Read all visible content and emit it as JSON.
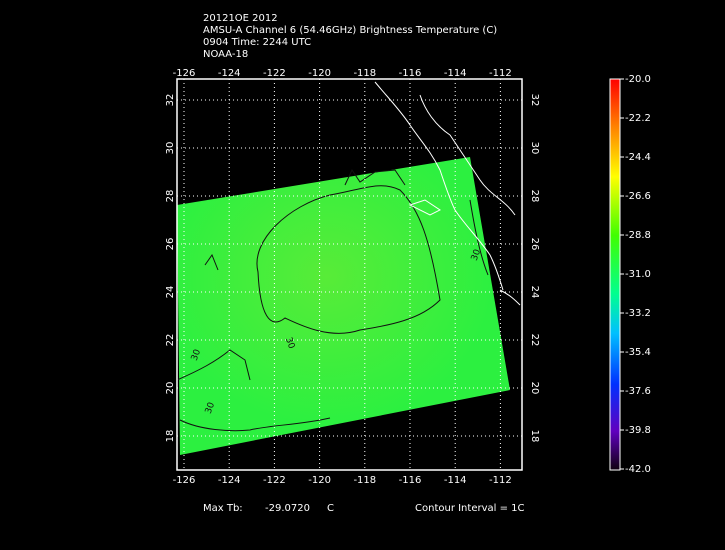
{
  "header": {
    "lines": [
      "20121OE 2012",
      "AMSU-A Channel 6 (54.46GHz) Brightness Temperature (C)",
      "0904 Time: 2244 UTC",
      "NOAA-18"
    ]
  },
  "map": {
    "lon_labels": [
      "-126",
      "-124",
      "-122",
      "-120",
      "-118",
      "-116",
      "-114",
      "-112"
    ],
    "lat_labels": [
      "18",
      "20",
      "22",
      "24",
      "26",
      "28",
      "30",
      "32"
    ],
    "contour_labels": [
      "30",
      "30",
      "30",
      "30"
    ]
  },
  "colorbar": {
    "labels": [
      "-20.0",
      "-22.2",
      "-24.4",
      "-26.6",
      "-28.8",
      "-31.0",
      "-33.2",
      "-35.4",
      "-37.6",
      "-39.8",
      "-42.0"
    ]
  },
  "footer": {
    "max_label": "Max Tb:",
    "max_value": "-29.0720",
    "unit": "C",
    "contour_interval": "Contour Interval = 1C"
  }
}
